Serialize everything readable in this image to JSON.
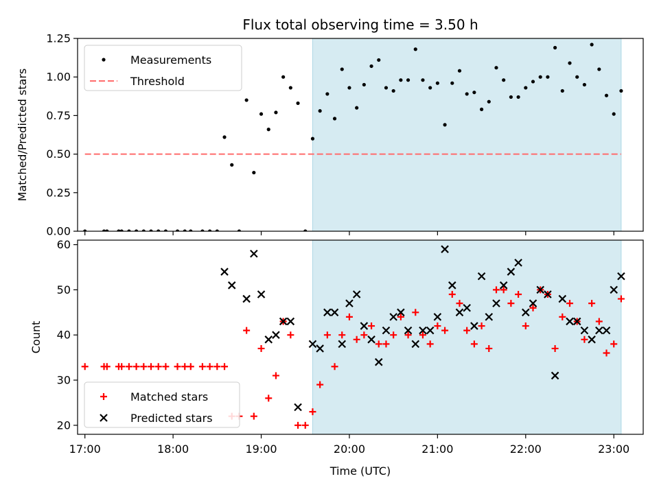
{
  "figure": {
    "title": "Flux total observing time = 3.50 h",
    "xlabel": "Time (UTC)"
  },
  "colors": {
    "highlight": "#add8e6",
    "measurement": "#000000",
    "threshold": "#ff6b6b",
    "matched": "#ff0000",
    "predicted": "#000000"
  },
  "chart_data": [
    {
      "type": "scatter",
      "ylabel": "Matched/Predicted stars",
      "ylim": [
        0,
        1.25
      ],
      "xlim": [
        "16:55",
        "23:20"
      ],
      "highlight_span": [
        "19:35",
        "23:05"
      ],
      "yticks": [
        "0.00",
        "0.25",
        "0.50",
        "0.75",
        "1.00",
        "1.25"
      ],
      "legend": {
        "placement": "upper-left",
        "entries": [
          "Measurements",
          "Threshold"
        ]
      },
      "threshold": {
        "name": "Threshold",
        "value": 0.5,
        "x_range": [
          "17:00",
          "23:05"
        ],
        "style": "dashed"
      },
      "series": [
        {
          "name": "Measurements",
          "marker": "dot",
          "points": [
            [
              "17:00",
              0
            ],
            [
              "17:13",
              0
            ],
            [
              "17:15",
              0
            ],
            [
              "17:23",
              0
            ],
            [
              "17:25",
              0
            ],
            [
              "17:30",
              0
            ],
            [
              "17:35",
              0
            ],
            [
              "17:40",
              0
            ],
            [
              "17:45",
              0
            ],
            [
              "17:50",
              0
            ],
            [
              "17:55",
              0
            ],
            [
              "18:03",
              0
            ],
            [
              "18:08",
              0
            ],
            [
              "18:12",
              0
            ],
            [
              "18:20",
              0
            ],
            [
              "18:25",
              0
            ],
            [
              "18:30",
              0
            ],
            [
              "18:35",
              0.61
            ],
            [
              "18:40",
              0.43
            ],
            [
              "18:45",
              0
            ],
            [
              "18:50",
              0.85
            ],
            [
              "18:55",
              0.38
            ],
            [
              "19:00",
              0.76
            ],
            [
              "19:05",
              0.66
            ],
            [
              "19:10",
              0.77
            ],
            [
              "19:15",
              1.0
            ],
            [
              "19:20",
              0.93
            ],
            [
              "19:25",
              0.83
            ],
            [
              "19:30",
              0
            ],
            [
              "19:35",
              0.6
            ],
            [
              "19:40",
              0.78
            ],
            [
              "19:45",
              0.89
            ],
            [
              "19:50",
              0.73
            ],
            [
              "19:55",
              1.05
            ],
            [
              "20:00",
              0.93
            ],
            [
              "20:05",
              0.8
            ],
            [
              "20:10",
              0.95
            ],
            [
              "20:15",
              1.07
            ],
            [
              "20:20",
              1.11
            ],
            [
              "20:25",
              0.93
            ],
            [
              "20:30",
              0.91
            ],
            [
              "20:35",
              0.98
            ],
            [
              "20:40",
              0.98
            ],
            [
              "20:45",
              1.18
            ],
            [
              "20:50",
              0.98
            ],
            [
              "20:55",
              0.93
            ],
            [
              "21:00",
              0.96
            ],
            [
              "21:05",
              0.69
            ],
            [
              "21:10",
              0.96
            ],
            [
              "21:15",
              1.04
            ],
            [
              "21:20",
              0.89
            ],
            [
              "21:25",
              0.9
            ],
            [
              "21:30",
              0.79
            ],
            [
              "21:35",
              0.84
            ],
            [
              "21:40",
              1.06
            ],
            [
              "21:45",
              0.98
            ],
            [
              "21:50",
              0.87
            ],
            [
              "21:55",
              0.87
            ],
            [
              "22:00",
              0.93
            ],
            [
              "22:05",
              0.97
            ],
            [
              "22:10",
              1.0
            ],
            [
              "22:15",
              1.0
            ],
            [
              "22:20",
              1.19
            ],
            [
              "22:25",
              0.91
            ],
            [
              "22:30",
              1.09
            ],
            [
              "22:35",
              1.0
            ],
            [
              "22:40",
              0.95
            ],
            [
              "22:45",
              1.21
            ],
            [
              "22:50",
              1.05
            ],
            [
              "22:55",
              0.88
            ],
            [
              "23:00",
              0.76
            ],
            [
              "23:05",
              0.91
            ]
          ]
        }
      ]
    },
    {
      "type": "scatter",
      "ylabel": "Count",
      "ylim": [
        18,
        61
      ],
      "xlim": [
        "16:55",
        "23:20"
      ],
      "highlight_span": [
        "19:35",
        "23:05"
      ],
      "yticks": [
        "20",
        "30",
        "40",
        "50",
        "60"
      ],
      "xticks": [
        "17:00",
        "18:00",
        "19:00",
        "20:00",
        "21:00",
        "22:00",
        "23:00"
      ],
      "legend": {
        "placement": "lower-left",
        "entries": [
          "Matched stars",
          "Predicted stars"
        ]
      },
      "series": [
        {
          "name": "Matched stars",
          "marker": "plus",
          "points": [
            [
              "17:00",
              33
            ],
            [
              "17:13",
              33
            ],
            [
              "17:15",
              33
            ],
            [
              "17:23",
              33
            ],
            [
              "17:25",
              33
            ],
            [
              "17:30",
              33
            ],
            [
              "17:35",
              33
            ],
            [
              "17:40",
              33
            ],
            [
              "17:45",
              33
            ],
            [
              "17:50",
              33
            ],
            [
              "17:55",
              33
            ],
            [
              "18:03",
              33
            ],
            [
              "18:08",
              33
            ],
            [
              "18:12",
              33
            ],
            [
              "18:20",
              33
            ],
            [
              "18:25",
              33
            ],
            [
              "18:30",
              33
            ],
            [
              "18:35",
              33
            ],
            [
              "18:40",
              22
            ],
            [
              "18:45",
              22
            ],
            [
              "18:50",
              41
            ],
            [
              "18:55",
              22
            ],
            [
              "19:00",
              37
            ],
            [
              "19:05",
              26
            ],
            [
              "19:10",
              31
            ],
            [
              "19:15",
              43
            ],
            [
              "19:20",
              40
            ],
            [
              "19:25",
              20
            ],
            [
              "19:30",
              20
            ],
            [
              "19:35",
              23
            ],
            [
              "19:40",
              29
            ],
            [
              "19:45",
              40
            ],
            [
              "19:50",
              33
            ],
            [
              "19:55",
              40
            ],
            [
              "20:00",
              44
            ],
            [
              "20:05",
              39
            ],
            [
              "20:10",
              40
            ],
            [
              "20:15",
              42
            ],
            [
              "20:20",
              38
            ],
            [
              "20:25",
              38
            ],
            [
              "20:30",
              40
            ],
            [
              "20:35",
              44
            ],
            [
              "20:40",
              40
            ],
            [
              "20:45",
              45
            ],
            [
              "20:50",
              40
            ],
            [
              "20:55",
              38
            ],
            [
              "21:00",
              42
            ],
            [
              "21:05",
              41
            ],
            [
              "21:10",
              49
            ],
            [
              "21:15",
              47
            ],
            [
              "21:20",
              41
            ],
            [
              "21:25",
              38
            ],
            [
              "21:30",
              42
            ],
            [
              "21:35",
              37
            ],
            [
              "21:40",
              50
            ],
            [
              "21:45",
              50
            ],
            [
              "21:50",
              47
            ],
            [
              "21:55",
              49
            ],
            [
              "22:00",
              42
            ],
            [
              "22:05",
              46
            ],
            [
              "22:10",
              50
            ],
            [
              "22:15",
              49
            ],
            [
              "22:20",
              37
            ],
            [
              "22:25",
              44
            ],
            [
              "22:30",
              47
            ],
            [
              "22:35",
              43
            ],
            [
              "22:40",
              39
            ],
            [
              "22:45",
              47
            ],
            [
              "22:50",
              43
            ],
            [
              "22:55",
              36
            ],
            [
              "23:00",
              38
            ],
            [
              "23:05",
              48
            ]
          ]
        },
        {
          "name": "Predicted stars",
          "marker": "x",
          "points": [
            [
              "18:35",
              54
            ],
            [
              "18:40",
              51
            ],
            [
              "18:50",
              48
            ],
            [
              "18:55",
              58
            ],
            [
              "19:00",
              49
            ],
            [
              "19:05",
              39
            ],
            [
              "19:10",
              40
            ],
            [
              "19:15",
              43
            ],
            [
              "19:20",
              43
            ],
            [
              "19:25",
              24
            ],
            [
              "19:35",
              38
            ],
            [
              "19:40",
              37
            ],
            [
              "19:45",
              45
            ],
            [
              "19:50",
              45
            ],
            [
              "19:55",
              38
            ],
            [
              "20:00",
              47
            ],
            [
              "20:05",
              49
            ],
            [
              "20:10",
              42
            ],
            [
              "20:15",
              39
            ],
            [
              "20:20",
              34
            ],
            [
              "20:25",
              41
            ],
            [
              "20:30",
              44
            ],
            [
              "20:35",
              45
            ],
            [
              "20:40",
              41
            ],
            [
              "20:45",
              38
            ],
            [
              "20:50",
              41
            ],
            [
              "20:55",
              41
            ],
            [
              "21:00",
              44
            ],
            [
              "21:05",
              59
            ],
            [
              "21:10",
              51
            ],
            [
              "21:15",
              45
            ],
            [
              "21:20",
              46
            ],
            [
              "21:25",
              42
            ],
            [
              "21:30",
              53
            ],
            [
              "21:35",
              44
            ],
            [
              "21:40",
              47
            ],
            [
              "21:45",
              51
            ],
            [
              "21:50",
              54
            ],
            [
              "21:55",
              56
            ],
            [
              "22:00",
              45
            ],
            [
              "22:05",
              47
            ],
            [
              "22:10",
              50
            ],
            [
              "22:15",
              49
            ],
            [
              "22:20",
              31
            ],
            [
              "22:25",
              48
            ],
            [
              "22:30",
              43
            ],
            [
              "22:35",
              43
            ],
            [
              "22:40",
              41
            ],
            [
              "22:45",
              39
            ],
            [
              "22:50",
              41
            ],
            [
              "22:55",
              41
            ],
            [
              "23:00",
              50
            ],
            [
              "23:05",
              53
            ]
          ]
        }
      ]
    }
  ]
}
